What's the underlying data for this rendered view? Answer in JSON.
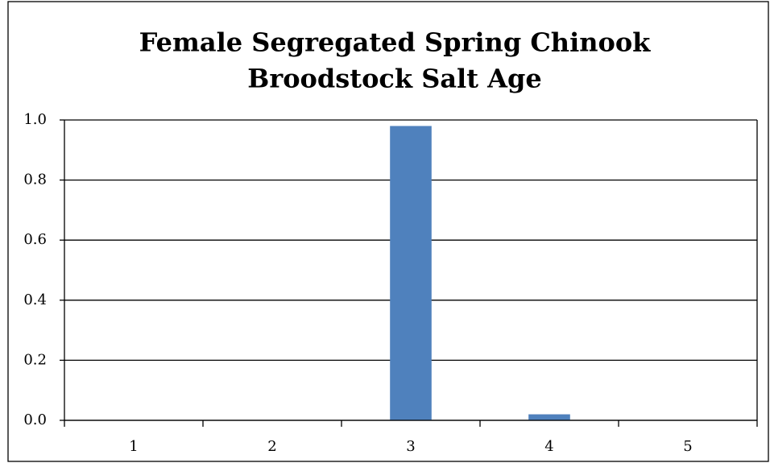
{
  "chart_data": {
    "type": "bar",
    "title": [
      "Female Segregated Spring Chinook",
      "Broodstock Salt Age"
    ],
    "categories": [
      "1",
      "2",
      "3",
      "4",
      "5"
    ],
    "values": [
      0,
      0,
      0.98,
      0.02,
      0
    ],
    "color": "#4f81bd",
    "ylim": [
      0,
      1
    ],
    "yticks": [
      {
        "value": 0,
        "label": "0.0"
      },
      0.2,
      0.4,
      0.6,
      0.8,
      {
        "value": 1,
        "label": "1.0"
      }
    ],
    "grid": true
  }
}
